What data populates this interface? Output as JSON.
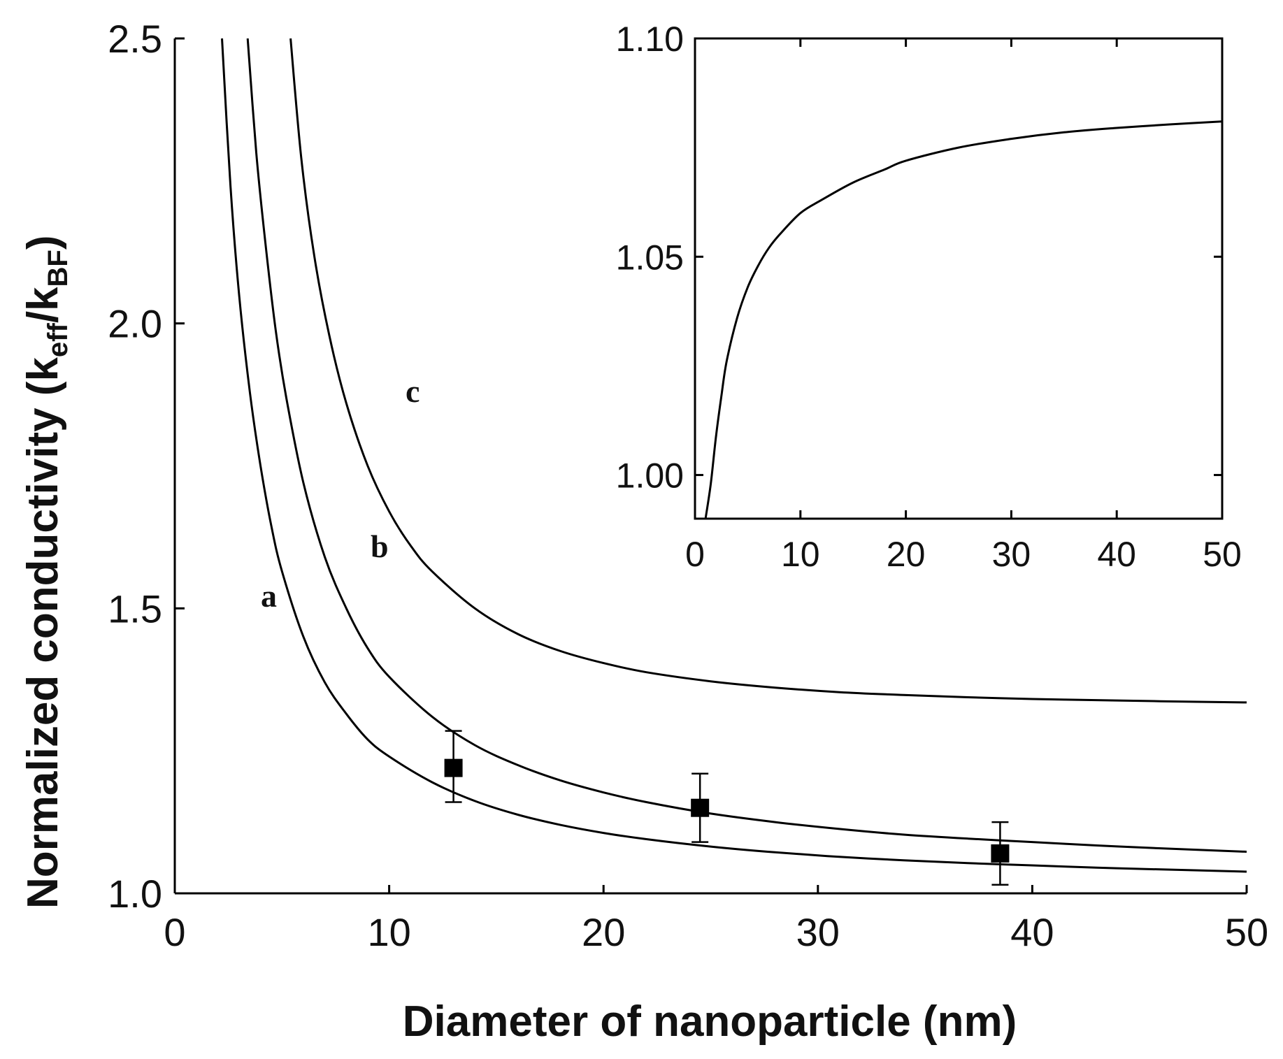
{
  "chart_data": [
    {
      "type": "line",
      "title": "",
      "xlabel": "Diameter of nanoparticle (nm)",
      "ylabel_main": "Normalized conductivity (k",
      "ylabel_sub1": "eff",
      "ylabel_mid": "/k",
      "ylabel_sub2": "BF",
      "ylabel_end": ")",
      "xlim": [
        0,
        50
      ],
      "ylim": [
        1.0,
        2.5
      ],
      "x_ticks": [
        0,
        10,
        20,
        30,
        40,
        50
      ],
      "x_tick_labels": [
        "0",
        "10",
        "20",
        "30",
        "40",
        "50"
      ],
      "y_ticks": [
        1.0,
        1.5,
        2.0,
        2.5
      ],
      "y_tick_labels": [
        "1.0",
        "1.5",
        "2.0",
        "2.5"
      ],
      "grid": false,
      "series": [
        {
          "name": "a",
          "x": [
            2.2,
            2.6,
            3,
            3.5,
            4,
            4.5,
            5,
            6,
            7,
            8,
            9,
            10,
            12,
            14,
            16,
            18,
            20,
            22,
            25,
            28,
            31,
            34,
            37,
            40,
            43,
            46,
            50
          ],
          "y": [
            2.5,
            2.24,
            2.05,
            1.88,
            1.75,
            1.645,
            1.565,
            1.45,
            1.37,
            1.315,
            1.27,
            1.24,
            1.195,
            1.162,
            1.138,
            1.12,
            1.106,
            1.095,
            1.082,
            1.072,
            1.064,
            1.058,
            1.053,
            1.049,
            1.045,
            1.042,
            1.038
          ]
        },
        {
          "name": "b",
          "x": [
            3.4,
            3.8,
            4.2,
            4.7,
            5.2,
            6,
            7,
            8,
            9,
            10,
            12,
            14,
            16,
            18,
            20,
            22,
            25,
            28,
            31,
            34,
            37,
            40,
            43,
            46,
            50
          ],
          "y": [
            2.5,
            2.3,
            2.15,
            1.99,
            1.87,
            1.72,
            1.59,
            1.5,
            1.43,
            1.38,
            1.31,
            1.26,
            1.225,
            1.198,
            1.177,
            1.16,
            1.14,
            1.125,
            1.113,
            1.103,
            1.096,
            1.09,
            1.084,
            1.079,
            1.073
          ]
        },
        {
          "name": "c",
          "x": [
            5.4,
            5.9,
            6.5,
            7.2,
            8,
            9,
            10,
            11,
            12,
            14,
            16,
            18,
            20,
            22,
            25,
            28,
            31,
            34,
            37,
            40,
            43,
            46,
            50
          ],
          "y": [
            2.5,
            2.29,
            2.12,
            1.98,
            1.86,
            1.75,
            1.67,
            1.61,
            1.565,
            1.5,
            1.455,
            1.425,
            1.404,
            1.388,
            1.372,
            1.361,
            1.353,
            1.348,
            1.344,
            1.341,
            1.339,
            1.337,
            1.335
          ]
        }
      ],
      "curve_labels": [
        "a",
        "b",
        "c"
      ],
      "points": [
        {
          "x": 13,
          "y": 1.22,
          "err_low": 1.16,
          "err_high": 1.285
        },
        {
          "x": 24.5,
          "y": 1.15,
          "err_low": 1.09,
          "err_high": 1.21
        },
        {
          "x": 38.5,
          "y": 1.07,
          "err_low": 1.015,
          "err_high": 1.125
        }
      ]
    },
    {
      "type": "line",
      "title": "",
      "xlabel": "",
      "ylabel": "",
      "xlim": [
        0,
        50
      ],
      "ylim": [
        0.99,
        1.1
      ],
      "x_ticks": [
        0,
        10,
        20,
        30,
        40,
        50
      ],
      "x_tick_labels": [
        "0",
        "10",
        "20",
        "30",
        "40",
        "50"
      ],
      "y_ticks": [
        1.0,
        1.05,
        1.1
      ],
      "y_tick_labels": [
        "1.00",
        "1.05",
        "1.10"
      ],
      "grid": false,
      "series": [
        {
          "x": [
            1,
            1.5,
            2,
            2.5,
            3,
            4,
            5,
            6,
            7,
            8,
            10,
            12,
            15,
            18,
            20,
            25,
            30,
            35,
            40,
            45,
            50
          ],
          "y": [
            0.99,
            0.998,
            1.009,
            1.018,
            1.026,
            1.036,
            1.043,
            1.048,
            1.052,
            1.055,
            1.06,
            1.063,
            1.067,
            1.07,
            1.072,
            1.075,
            1.077,
            1.0785,
            1.0795,
            1.0803,
            1.081
          ]
        }
      ]
    }
  ]
}
